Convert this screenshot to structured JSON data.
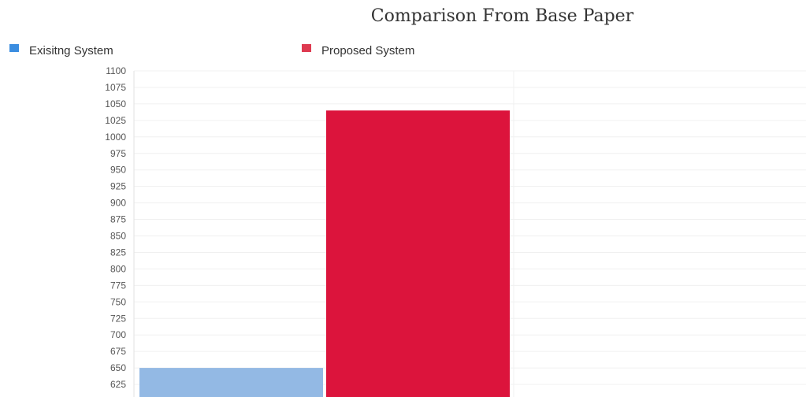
{
  "chart_data": {
    "type": "bar",
    "title": "Comparison From Base Paper",
    "xlabel": "",
    "ylabel": "",
    "series": [
      {
        "name": "Exisitng System",
        "color": "#93b9e4",
        "values": [
          650
        ]
      },
      {
        "name": "Proposed System",
        "color": "#dc143c",
        "values": [
          1040
        ]
      }
    ],
    "yticks": [
      625,
      650,
      675,
      700,
      725,
      750,
      775,
      800,
      825,
      850,
      875,
      900,
      925,
      950,
      975,
      1000,
      1025,
      1050,
      1075,
      1100
    ],
    "ylim": [
      600,
      1100
    ],
    "grid": true,
    "legend_position": "top-left"
  },
  "colors": {
    "legend_existing": "#3b8de0",
    "legend_proposed": "#de3a50",
    "grid": "#f0f0f0",
    "axis": "#e2e2e2"
  }
}
